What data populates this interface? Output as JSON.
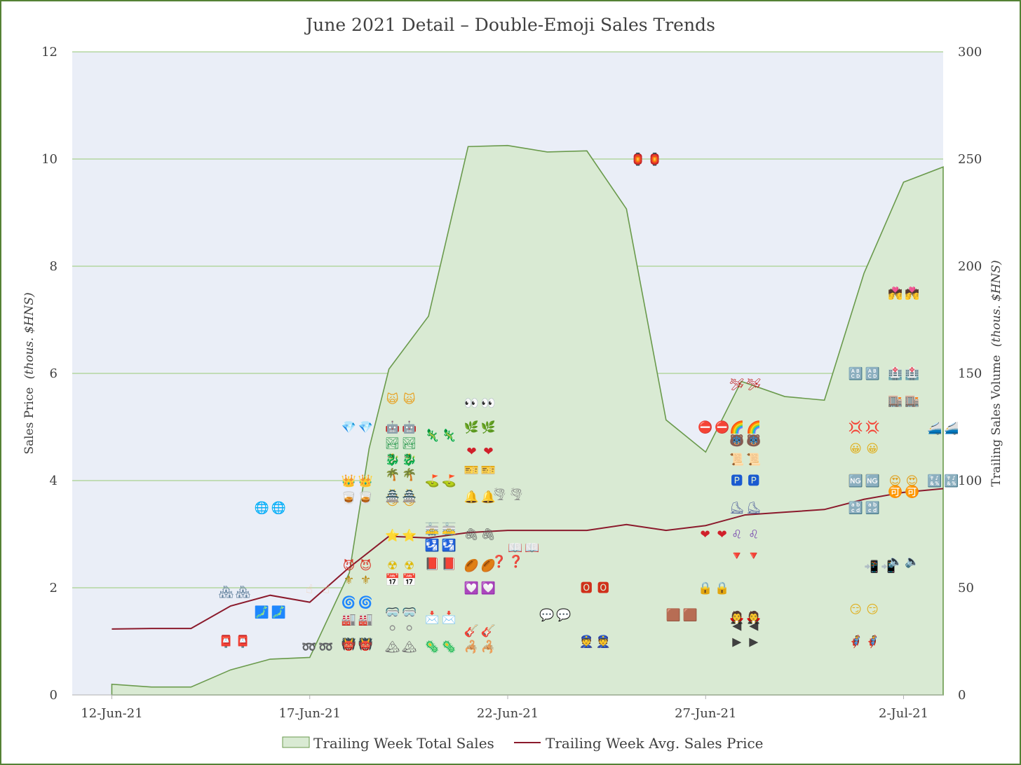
{
  "chart_data": {
    "type": "area",
    "title": "June 2021 Detail – Double-Emoji Sales Trends",
    "ylabel_left": "Sales Price",
    "ylabel_left_unit": "(thous. $HNS)",
    "ylabel_right": "Trailing Sales Volume",
    "ylabel_right_unit": "(thous. $HNS)",
    "xlim": [
      "2021-06-11",
      "2021-07-03"
    ],
    "xticks": [
      {
        "date": "2021-06-12",
        "label": "12-Jun-21"
      },
      {
        "date": "2021-06-17",
        "label": "17-Jun-21"
      },
      {
        "date": "2021-06-22",
        "label": "22-Jun-21"
      },
      {
        "date": "2021-06-27",
        "label": "27-Jun-21"
      },
      {
        "date": "2021-07-02",
        "label": "2-Jul-21"
      }
    ],
    "ylim_left": [
      0,
      12
    ],
    "yticks_left": [
      "0",
      "2",
      "4",
      "6",
      "8",
      "10",
      "12"
    ],
    "ylim_right": [
      0,
      300
    ],
    "yticks_right": [
      "0",
      "50",
      "100",
      "150",
      "200",
      "250",
      "300"
    ],
    "grid": true,
    "legend_position": "bottom",
    "colors": {
      "area_fill": "#d9ead3",
      "area_line": "#6a9a4c",
      "price_line": "#8b1a2c",
      "plot_bg": "#eaeef7",
      "grid": "#a9d18e"
    },
    "series": [
      {
        "name": "Trailing Week Total Sales",
        "axis": "right",
        "type": "area",
        "points": [
          [
            "2021-06-12",
            5
          ],
          [
            "2021-06-13",
            3.7
          ],
          [
            "2021-06-14",
            3.7
          ],
          [
            "2021-06-15",
            11.7
          ],
          [
            "2021-06-16",
            16.7
          ],
          [
            "2021-06-17",
            17.5
          ],
          [
            "2021-06-18",
            57
          ],
          [
            "2021-06-18.5",
            115
          ],
          [
            "2021-06-19",
            152
          ],
          [
            "2021-06-20",
            176.7
          ],
          [
            "2021-06-21",
            255.8
          ],
          [
            "2021-06-22",
            256.3
          ],
          [
            "2021-06-23",
            253.3
          ],
          [
            "2021-06-24",
            253.8
          ],
          [
            "2021-06-25",
            226.7
          ],
          [
            "2021-06-26",
            128.3
          ],
          [
            "2021-06-27",
            113.3
          ],
          [
            "2021-06-27.9",
            146.3
          ],
          [
            "2021-06-29",
            139.2
          ],
          [
            "2021-06-30",
            137.5
          ],
          [
            "2021-07-01",
            196.7
          ],
          [
            "2021-07-02",
            239.2
          ],
          [
            "2021-07-03",
            246.3
          ]
        ]
      },
      {
        "name": "Trailing Week Avg. Sales Price",
        "axis": "left",
        "type": "line",
        "points": [
          [
            "2021-06-12",
            1.23
          ],
          [
            "2021-06-13",
            1.24
          ],
          [
            "2021-06-14",
            1.24
          ],
          [
            "2021-06-15",
            1.66
          ],
          [
            "2021-06-16",
            1.86
          ],
          [
            "2021-06-17",
            1.73
          ],
          [
            "2021-06-18",
            2.38
          ],
          [
            "2021-06-19",
            2.96
          ],
          [
            "2021-06-20",
            2.93
          ],
          [
            "2021-06-21",
            3.03
          ],
          [
            "2021-06-22",
            3.07
          ],
          [
            "2021-06-23",
            3.07
          ],
          [
            "2021-06-24",
            3.07
          ],
          [
            "2021-06-25",
            3.18
          ],
          [
            "2021-06-26",
            3.07
          ],
          [
            "2021-06-27",
            3.16
          ],
          [
            "2021-06-28",
            3.36
          ],
          [
            "2021-06-29",
            3.41
          ],
          [
            "2021-06-30",
            3.46
          ],
          [
            "2021-07-01",
            3.65
          ],
          [
            "2021-07-02",
            3.78
          ],
          [
            "2021-07-03",
            3.85
          ]
        ]
      }
    ],
    "emoji_sales": [
      {
        "date": "2021-06-15.1",
        "price": 1.0,
        "emoji": "📮",
        "color": "#d0312d"
      },
      {
        "date": "2021-06-15.1",
        "price": 1.93,
        "emoji": "🏘",
        "color": "#5b7c99"
      },
      {
        "date": "2021-06-16",
        "price": 1.55,
        "emoji": "🗾",
        "color": "#4aa3df"
      },
      {
        "date": "2021-06-16",
        "price": 3.5,
        "emoji": "🌐",
        "color": "#3a8fd8"
      },
      {
        "date": "2021-06-17.2",
        "price": 0.9,
        "emoji": "➿",
        "color": "#1f4fd1"
      },
      {
        "date": "2021-06-17.2",
        "price": 1.98,
        "emoji": "☝",
        "color": "#f0c8a8"
      },
      {
        "date": "2021-06-18.2",
        "price": 0.95,
        "emoji": "👹",
        "color": "#e8562e"
      },
      {
        "date": "2021-06-18.2",
        "price": 1.42,
        "emoji": "🏭",
        "color": "#e07a2e"
      },
      {
        "date": "2021-06-18.2",
        "price": 1.73,
        "emoji": "🌀",
        "color": "#2f6fd6"
      },
      {
        "date": "2021-06-18.2",
        "price": 2.15,
        "emoji": "⚜",
        "color": "#b8860b"
      },
      {
        "date": "2021-06-18.2",
        "price": 2.42,
        "emoji": "😈",
        "color": "#d93a2b"
      },
      {
        "date": "2021-06-18.2",
        "price": 3.68,
        "emoji": "🥃",
        "color": "#d99a3a"
      },
      {
        "date": "2021-06-18.2",
        "price": 4.0,
        "emoji": "👑",
        "color": "#e8b52e"
      },
      {
        "date": "2021-06-18.2",
        "price": 5.0,
        "emoji": "💎",
        "color": "#3ab0e8"
      },
      {
        "date": "2021-06-19.3",
        "price": 0.9,
        "emoji": "🏔",
        "color": "#707070"
      },
      {
        "date": "2021-06-19.3",
        "price": 1.25,
        "emoji": "⚪",
        "color": "#8a8a8a"
      },
      {
        "date": "2021-06-19.3",
        "price": 1.55,
        "emoji": "🥽",
        "color": "#2aa8d0"
      },
      {
        "date": "2021-06-19.3",
        "price": 2.15,
        "emoji": "📅",
        "color": "#c0392b"
      },
      {
        "date": "2021-06-19.3",
        "price": 2.42,
        "emoji": "☢",
        "color": "#e0b800"
      },
      {
        "date": "2021-06-19.3",
        "price": 2.98,
        "emoji": "⭐",
        "color": "#f0b400"
      },
      {
        "date": "2021-06-19.3",
        "price": 3.62,
        "emoji": "😼",
        "color": "#e8a020"
      },
      {
        "date": "2021-06-19.3",
        "price": 3.72,
        "emoji": "🏯",
        "color": "#d08a2e"
      },
      {
        "date": "2021-06-19.3",
        "price": 4.12,
        "emoji": "🌴",
        "color": "#3a9a3a"
      },
      {
        "date": "2021-06-19.3",
        "price": 4.4,
        "emoji": "🐉",
        "color": "#2e9a4a"
      },
      {
        "date": "2021-06-19.3",
        "price": 4.7,
        "emoji": "🏞",
        "color": "#3aa05a"
      },
      {
        "date": "2021-06-19.3",
        "price": 5.0,
        "emoji": "🤖",
        "color": "#708090"
      },
      {
        "date": "2021-06-19.3",
        "price": 5.52,
        "emoji": "🙀",
        "color": "#e8a020"
      },
      {
        "date": "2021-06-20.3",
        "price": 0.9,
        "emoji": "🦠",
        "color": "#8a3aa0"
      },
      {
        "date": "2021-06-20.3",
        "price": 1.45,
        "emoji": "📩",
        "color": "#e0a030"
      },
      {
        "date": "2021-06-20.3",
        "price": 2.45,
        "emoji": "📕",
        "color": "#d0302a"
      },
      {
        "date": "2021-06-20.3",
        "price": 2.8,
        "emoji": "🛂",
        "color": "#2060c8"
      },
      {
        "date": "2021-06-20.3",
        "price": 3.1,
        "emoji": "🚋",
        "color": "#2a8aa8"
      },
      {
        "date": "2021-06-20.3",
        "price": 4.0,
        "emoji": "⛳",
        "color": "#3a9a3a"
      },
      {
        "date": "2021-06-20.3",
        "price": 4.85,
        "emoji": "🦎",
        "color": "#4a9a2a"
      },
      {
        "date": "2021-06-21.3",
        "price": 0.9,
        "emoji": "🦂",
        "color": "#c04a2a"
      },
      {
        "date": "2021-06-21.3",
        "price": 1.2,
        "emoji": "🎸",
        "color": "#d0602a"
      },
      {
        "date": "2021-06-21.3",
        "price": 2.0,
        "emoji": "💟",
        "color": "#d0304a"
      },
      {
        "date": "2021-06-21.3",
        "price": 2.42,
        "emoji": "🏉",
        "color": "#8a5a2a"
      },
      {
        "date": "2021-06-21.3",
        "price": 3.7,
        "emoji": "🔔",
        "color": "#e0a020"
      },
      {
        "date": "2021-06-21.3",
        "price": 4.2,
        "emoji": "🎫",
        "color": "#e09020"
      },
      {
        "date": "2021-06-21.3",
        "price": 4.55,
        "emoji": "❤",
        "color": "#d0202a"
      },
      {
        "date": "2021-06-21.3",
        "price": 5.0,
        "emoji": "🌿",
        "color": "#5a9a2a"
      },
      {
        "date": "2021-06-21.3",
        "price": 5.45,
        "emoji": "👀",
        "color": "#404040"
      },
      {
        "date": "2021-06-21.3",
        "price": 3.0,
        "emoji": "🖇",
        "color": "#606060"
      },
      {
        "date": "2021-06-22",
        "price": 2.5,
        "emoji": "❓",
        "color": "#c02020"
      },
      {
        "date": "2021-06-22",
        "price": 3.75,
        "emoji": "🌪",
        "color": "#808080"
      },
      {
        "date": "2021-06-22.4",
        "price": 2.75,
        "emoji": "📖",
        "color": "#606060"
      },
      {
        "date": "2021-06-23.2",
        "price": 1.5,
        "emoji": "💬",
        "color": "#606060"
      },
      {
        "date": "2021-06-24.2",
        "price": 1.0,
        "emoji": "👮",
        "color": "#3060a0"
      },
      {
        "date": "2021-06-24.2",
        "price": 2.0,
        "emoji": "🅾",
        "color": "#d0301a"
      },
      {
        "date": "2021-06-25.5",
        "price": 10.0,
        "emoji": "🏮",
        "color": "#e0a010"
      },
      {
        "date": "2021-06-26.4",
        "price": 1.5,
        "emoji": "🟫",
        "color": "#8b5a2b"
      },
      {
        "date": "2021-06-27.2",
        "price": 2.0,
        "emoji": "🔒",
        "color": "#e0b020"
      },
      {
        "date": "2021-06-27.2",
        "price": 3.0,
        "emoji": "❤",
        "color": "#d0202a"
      },
      {
        "date": "2021-06-27.2",
        "price": 5.0,
        "emoji": "⛔",
        "color": "#d02020"
      },
      {
        "date": "2021-06-28",
        "price": 1.0,
        "emoji": "▶",
        "color": "#404040"
      },
      {
        "date": "2021-06-28",
        "price": 1.3,
        "emoji": "◀",
        "color": "#404040"
      },
      {
        "date": "2021-06-28",
        "price": 1.45,
        "emoji": "🧛",
        "color": "#5a2a2a"
      },
      {
        "date": "2021-06-28",
        "price": 2.6,
        "emoji": "🔻",
        "color": "#e05010"
      },
      {
        "date": "2021-06-28",
        "price": 3.0,
        "emoji": "♌",
        "color": "#7a4ab0"
      },
      {
        "date": "2021-06-28",
        "price": 3.5,
        "emoji": "⛸",
        "color": "#5a6aa0"
      },
      {
        "date": "2021-06-28",
        "price": 4.0,
        "emoji": "🅿",
        "color": "#1a5ad0"
      },
      {
        "date": "2021-06-28",
        "price": 4.4,
        "emoji": "📜",
        "color": "#8a9ab0"
      },
      {
        "date": "2021-06-28",
        "price": 4.75,
        "emoji": "🐻",
        "color": "#8b5a2b"
      },
      {
        "date": "2021-06-28",
        "price": 4.75,
        "emoji": "❄",
        "color": "#2a8ad0"
      },
      {
        "date": "2021-06-28",
        "price": 5.0,
        "emoji": "🌈",
        "color": "#c08030"
      },
      {
        "date": "2021-06-28",
        "price": 5.8,
        "emoji": "🛩",
        "color": "#c02020"
      },
      {
        "date": "2021-07-01",
        "price": 1.0,
        "emoji": "🦸",
        "color": "#c03030"
      },
      {
        "date": "2021-07-01",
        "price": 1.6,
        "emoji": "😏",
        "color": "#e0b020"
      },
      {
        "date": "2021-07-01",
        "price": 3.5,
        "emoji": "🔡",
        "color": "#1a7ad0"
      },
      {
        "date": "2021-07-01",
        "price": 4.0,
        "emoji": "🆚",
        "color": "#e05010"
      },
      {
        "date": "2021-07-01",
        "price": 4.0,
        "emoji": "🆖",
        "color": "#1a7ad0"
      },
      {
        "date": "2021-07-01",
        "price": 4.6,
        "emoji": "😀",
        "color": "#e0b020"
      },
      {
        "date": "2021-07-01",
        "price": 5.0,
        "emoji": "💢",
        "color": "#d03020"
      },
      {
        "date": "2021-07-01",
        "price": 6.0,
        "emoji": "🔠",
        "color": "#1a7ad0"
      },
      {
        "date": "2021-07-01.4",
        "price": 2.4,
        "emoji": "📲",
        "color": "#2a6ad0"
      },
      {
        "date": "2021-07-02",
        "price": 2.5,
        "emoji": "🔈",
        "color": "#606060"
      },
      {
        "date": "2021-07-02",
        "price": 3.8,
        "emoji": "🉑",
        "color": "#1a7ad0"
      },
      {
        "date": "2021-07-02",
        "price": 4.0,
        "emoji": "😍",
        "color": "#e0a020"
      },
      {
        "date": "2021-07-02",
        "price": 5.5,
        "emoji": "🏬",
        "color": "#c03060"
      },
      {
        "date": "2021-07-02",
        "price": 6.0,
        "emoji": "🏥",
        "color": "#d03030"
      },
      {
        "date": "2021-07-02",
        "price": 7.5,
        "emoji": "💏",
        "color": "#c03060"
      },
      {
        "date": "2021-07-03",
        "price": 4.0,
        "emoji": "🔣",
        "color": "#1a7ad0"
      },
      {
        "date": "2021-07-03",
        "price": 4.98,
        "emoji": "🚄",
        "color": "#2a8ad0"
      }
    ]
  }
}
